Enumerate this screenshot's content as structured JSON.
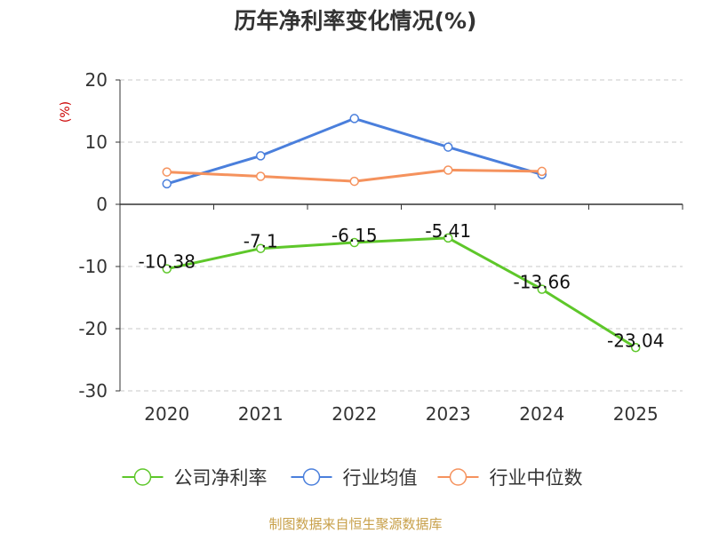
{
  "chart_data": {
    "type": "line",
    "title": "历年净利率变化情况(%)",
    "ylabel": "(%)",
    "xlabel": "",
    "categories": [
      "2020",
      "2021",
      "2022",
      "2023",
      "2024",
      "2025"
    ],
    "ylim": [
      -30,
      20
    ],
    "yticks": [
      20,
      10,
      0,
      -10,
      -20,
      -30
    ],
    "grid": true,
    "legend_position": "bottom",
    "series": [
      {
        "name": "公司净利率",
        "color": "#5ec72a",
        "show_labels": true,
        "values": [
          -10.38,
          -7.1,
          -6.15,
          -5.41,
          -13.66,
          -23.04
        ],
        "labels": [
          "-10.38",
          "-7.1",
          "-6.15",
          "-5.41",
          "-13.66",
          "-23.04"
        ]
      },
      {
        "name": "行业均值",
        "color": "#4a7fdc",
        "show_labels": false,
        "values": [
          3.3,
          7.8,
          13.8,
          9.2,
          4.8,
          null
        ]
      },
      {
        "name": "行业中位数",
        "color": "#f5925d",
        "show_labels": false,
        "values": [
          5.2,
          4.5,
          3.7,
          5.5,
          5.3,
          null
        ]
      }
    ]
  },
  "source": "制图数据来自恒生聚源数据库"
}
